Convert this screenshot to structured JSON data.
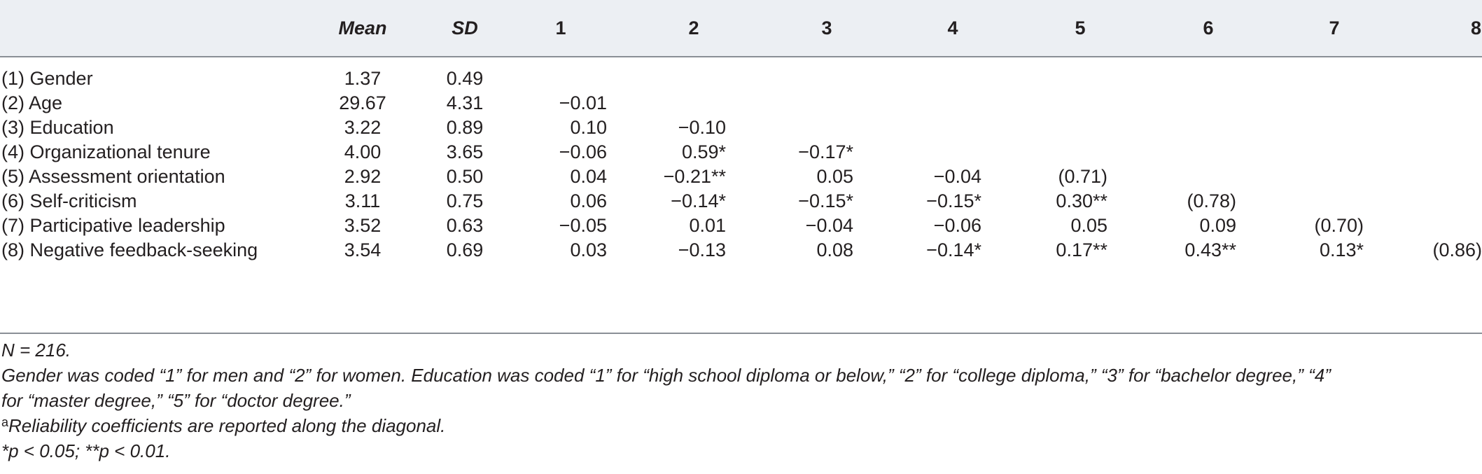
{
  "header": {
    "label": "",
    "mean": "Mean",
    "sd": "SD",
    "cols": [
      "1",
      "2",
      "3",
      "4",
      "5",
      "6",
      "7",
      "8"
    ]
  },
  "rows": [
    {
      "label": "(1) Gender",
      "mean": "1.37",
      "sd": "0.49",
      "vals": [
        "",
        "",
        "",
        "",
        "",
        "",
        "",
        ""
      ]
    },
    {
      "label": "(2) Age",
      "mean": "29.67",
      "sd": "4.31",
      "vals": [
        "−0.01",
        "",
        "",
        "",
        "",
        "",
        "",
        ""
      ]
    },
    {
      "label": "(3) Education",
      "mean": "3.22",
      "sd": "0.89",
      "vals": [
        "0.10",
        "−0.10",
        "",
        "",
        "",
        "",
        "",
        ""
      ]
    },
    {
      "label": "(4) Organizational tenure",
      "mean": "4.00",
      "sd": "3.65",
      "vals": [
        "−0.06",
        "0.59*",
        "−0.17*",
        "",
        "",
        "",
        "",
        ""
      ]
    },
    {
      "label": "(5) Assessment orientation",
      "mean": "2.92",
      "sd": "0.50",
      "vals": [
        "0.04",
        "−0.21**",
        "0.05",
        "−0.04",
        "(0.71)",
        "",
        "",
        ""
      ]
    },
    {
      "label": "(6) Self-criticism",
      "mean": "3.11",
      "sd": "0.75",
      "vals": [
        "0.06",
        "−0.14*",
        "−0.15*",
        "−0.15*",
        "0.30**",
        "(0.78)",
        "",
        ""
      ]
    },
    {
      "label": "(7) Participative leadership",
      "mean": "3.52",
      "sd": "0.63",
      "vals": [
        "−0.05",
        "0.01",
        "−0.04",
        "−0.06",
        "0.05",
        "0.09",
        "(0.70)",
        ""
      ]
    },
    {
      "label": "(8) Negative feedback-seeking",
      "mean": "3.54",
      "sd": "0.69",
      "vals": [
        "0.03",
        "−0.13",
        "0.08",
        "−0.14*",
        "0.17**",
        "0.43**",
        "0.13*",
        "(0.86)"
      ]
    }
  ],
  "notes": {
    "n": "N = 216.",
    "coding_line1": "Gender was coded “1” for men and “2” for women. Education was coded “1” for “high school diploma or below,” “2” for “college diploma,” “3” for “bachelor degree,” “4”",
    "coding_line2": "for “master degree,” “5” for “doctor degree.”",
    "reliability_mark": "a",
    "reliability": "Reliability coefficients are reported along the diagonal.",
    "significance": "*p < 0.05; **p < 0.01."
  }
}
